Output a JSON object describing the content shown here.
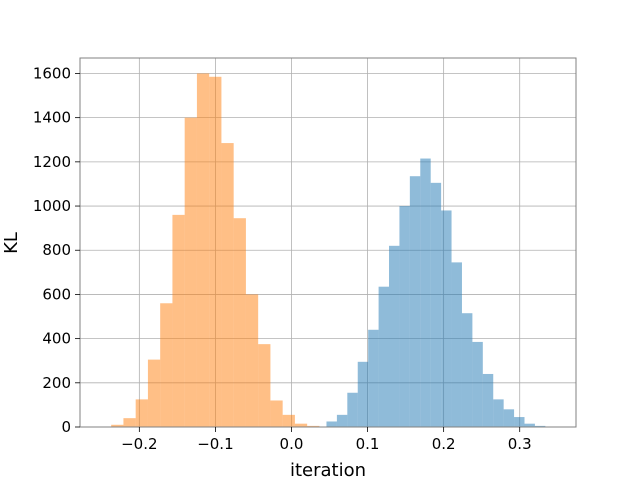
{
  "chart_data": {
    "type": "bar",
    "subtype": "histogram",
    "title": "",
    "xlabel": "iteration",
    "ylabel": "KL",
    "xlim": [
      -0.278,
      0.374
    ],
    "ylim": [
      0,
      1670
    ],
    "xticks": [
      -0.2,
      -0.1,
      0.0,
      0.1,
      0.2,
      0.3
    ],
    "xtick_labels": [
      "−0.2",
      "−0.1",
      "0.0",
      "0.1",
      "0.2",
      "0.3"
    ],
    "yticks": [
      0,
      200,
      400,
      600,
      800,
      1000,
      1200,
      1400,
      1600
    ],
    "ytick_labels": [
      "0",
      "200",
      "400",
      "600",
      "800",
      "1000",
      "1200",
      "1400",
      "1600"
    ],
    "grid": true,
    "legend": "none",
    "series": [
      {
        "color": "#1f77b4",
        "opacity": 0.5,
        "bin_width": 0.0137,
        "bins": [
          [
            0.046,
            25
          ],
          [
            0.0597,
            55
          ],
          [
            0.0734,
            155
          ],
          [
            0.0871,
            295
          ],
          [
            0.1008,
            440
          ],
          [
            0.1145,
            635
          ],
          [
            0.1282,
            820
          ],
          [
            0.1419,
            1000
          ],
          [
            0.1556,
            1135
          ],
          [
            0.1693,
            1215
          ],
          [
            0.183,
            1105
          ],
          [
            0.1967,
            980
          ],
          [
            0.2104,
            745
          ],
          [
            0.2241,
            515
          ],
          [
            0.2378,
            385
          ],
          [
            0.2515,
            240
          ],
          [
            0.2652,
            125
          ],
          [
            0.2789,
            80
          ],
          [
            0.2926,
            45
          ],
          [
            0.3063,
            15
          ],
          [
            0.32,
            5
          ]
        ]
      },
      {
        "color": "#ff7f0e",
        "opacity": 0.5,
        "bin_width": 0.0161,
        "bins": [
          [
            -0.237,
            10
          ],
          [
            -0.2209,
            40
          ],
          [
            -0.2048,
            125
          ],
          [
            -0.1887,
            305
          ],
          [
            -0.1726,
            560
          ],
          [
            -0.1565,
            960
          ],
          [
            -0.1404,
            1400
          ],
          [
            -0.1243,
            1600
          ],
          [
            -0.1082,
            1585
          ],
          [
            -0.0921,
            1285
          ],
          [
            -0.076,
            945
          ],
          [
            -0.0599,
            600
          ],
          [
            -0.0438,
            375
          ],
          [
            -0.0277,
            120
          ],
          [
            -0.0116,
            55
          ],
          [
            0.0045,
            15
          ],
          [
            0.0206,
            5
          ]
        ]
      }
    ]
  }
}
